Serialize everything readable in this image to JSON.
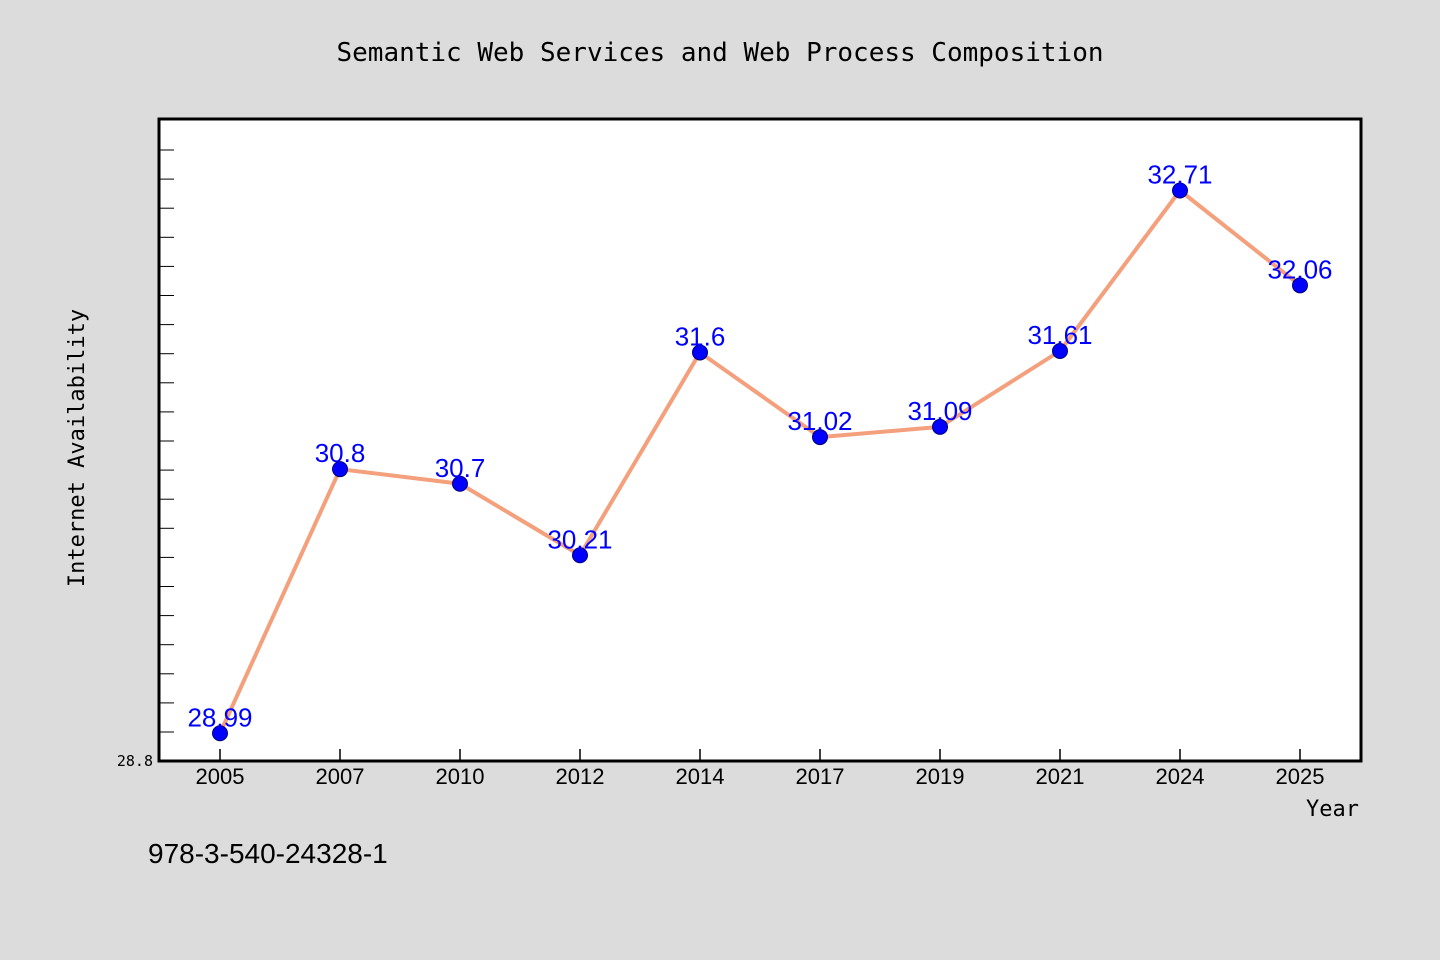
{
  "colors": {
    "background": "#dcdcdc",
    "plot_background": "#ffffff",
    "line": "#f4a07c",
    "marker": "#0000ff",
    "data_label": "#0000ff",
    "axis": "#000000"
  },
  "footer": {
    "isbn": "978-3-540-24328-1"
  },
  "chart_data": {
    "type": "line",
    "title": "Semantic Web Services and Web Process Composition",
    "xlabel": "Year",
    "ylabel": "Internet Availability",
    "categories": [
      "2005",
      "2007",
      "2010",
      "2012",
      "2014",
      "2017",
      "2019",
      "2021",
      "2024",
      "2025"
    ],
    "series": [
      {
        "values": [
          28.99,
          30.8,
          30.7,
          30.21,
          31.6,
          31.02,
          31.09,
          31.61,
          32.71,
          32.06
        ]
      }
    ],
    "data_labels": [
      "28.99",
      "30.8",
      "30.7",
      "30.21",
      "31.6",
      "31.02",
      "31.09",
      "31.61",
      "32.71",
      "32.06"
    ],
    "ylim": [
      28.8,
      33.2
    ],
    "y_tick_labels": [
      "28.8"
    ],
    "grid": false,
    "legend": "none"
  }
}
